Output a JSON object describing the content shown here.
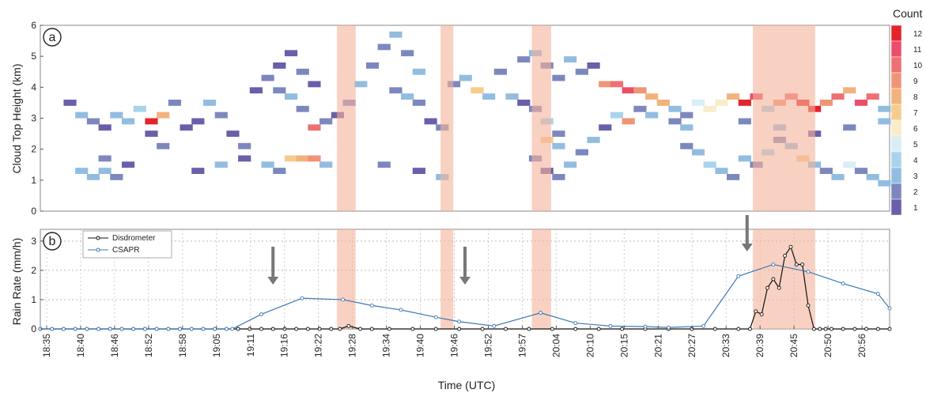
{
  "chart_data": [
    {
      "panel": "a",
      "type": "heatmap",
      "ylabel": "Cloud Top Height (km)",
      "ylim": [
        0,
        6
      ],
      "yticks": [
        0,
        1,
        2,
        3,
        4,
        5,
        6
      ],
      "colorbar_title": "Count",
      "colorbar_labels": [
        "1",
        "2",
        "3",
        "4",
        "5",
        "6",
        "7",
        "8",
        "9",
        "10",
        "11",
        "12"
      ],
      "colors": {
        "1": "#6a5fa9",
        "2": "#7c88bd",
        "3": "#92bde0",
        "4": "#a9d3ed",
        "5": "#d9eef6",
        "6": "#f8ecca",
        "7": "#f6cc8e",
        "8": "#f2b27c",
        "9": "#ef9575",
        "10": "#ee7074",
        "11": "#ea4e6a",
        "12": "#e3242b"
      },
      "time_range_min": [
        0,
        146
      ],
      "cell_minutes": 2.2,
      "cell_km": 0.2,
      "cells": [
        [
          4,
          3.4,
          1
        ],
        [
          6,
          3.0,
          3
        ],
        [
          8,
          2.8,
          2
        ],
        [
          10,
          2.6,
          1
        ],
        [
          12,
          3.0,
          3
        ],
        [
          14,
          2.8,
          3
        ],
        [
          16,
          3.2,
          4
        ],
        [
          18,
          2.8,
          12
        ],
        [
          20,
          3.0,
          8
        ],
        [
          22,
          3.4,
          2
        ],
        [
          6,
          1.2,
          3
        ],
        [
          8,
          1.0,
          3
        ],
        [
          10,
          1.2,
          3
        ],
        [
          12,
          1.0,
          2
        ],
        [
          14,
          1.4,
          1
        ],
        [
          10,
          1.6,
          2
        ],
        [
          18,
          2.4,
          1
        ],
        [
          20,
          2.0,
          2
        ],
        [
          24,
          2.6,
          1
        ],
        [
          26,
          2.8,
          1
        ],
        [
          28,
          3.4,
          3
        ],
        [
          30,
          3.0,
          2
        ],
        [
          32,
          2.4,
          1
        ],
        [
          34,
          2.0,
          2
        ],
        [
          26,
          1.2,
          1
        ],
        [
          30,
          1.4,
          3
        ],
        [
          34,
          1.6,
          1
        ],
        [
          38,
          1.4,
          3
        ],
        [
          40,
          1.2,
          2
        ],
        [
          42,
          1.6,
          7
        ],
        [
          44,
          1.6,
          8
        ],
        [
          46,
          1.6,
          9
        ],
        [
          48,
          1.4,
          3
        ],
        [
          36,
          3.8,
          1
        ],
        [
          38,
          4.2,
          2
        ],
        [
          40,
          4.6,
          1
        ],
        [
          42,
          5.0,
          1
        ],
        [
          44,
          4.4,
          2
        ],
        [
          46,
          4.0,
          1
        ],
        [
          40,
          3.8,
          2
        ],
        [
          42,
          3.6,
          3
        ],
        [
          44,
          3.2,
          2
        ],
        [
          46,
          2.6,
          10
        ],
        [
          48,
          2.8,
          2
        ],
        [
          50,
          3.0,
          1
        ],
        [
          52,
          3.4,
          2
        ],
        [
          54,
          4.0,
          3
        ],
        [
          56,
          4.6,
          2
        ],
        [
          58,
          5.2,
          2
        ],
        [
          60,
          5.6,
          3
        ],
        [
          62,
          5.0,
          2
        ],
        [
          64,
          4.4,
          3
        ],
        [
          60,
          3.8,
          2
        ],
        [
          62,
          3.6,
          3
        ],
        [
          64,
          3.4,
          2
        ],
        [
          66,
          2.8,
          1
        ],
        [
          68,
          2.6,
          2
        ],
        [
          58,
          1.4,
          2
        ],
        [
          64,
          1.2,
          1
        ],
        [
          68,
          1.0,
          3
        ],
        [
          70,
          4.0,
          2
        ],
        [
          72,
          4.2,
          3
        ],
        [
          74,
          3.8,
          7
        ],
        [
          76,
          3.6,
          3
        ],
        [
          78,
          4.4,
          2
        ],
        [
          80,
          3.6,
          3
        ],
        [
          82,
          3.4,
          1
        ],
        [
          84,
          3.2,
          2
        ],
        [
          86,
          2.8,
          4
        ],
        [
          88,
          2.4,
          2
        ],
        [
          82,
          4.8,
          2
        ],
        [
          84,
          5.0,
          3
        ],
        [
          86,
          4.6,
          2
        ],
        [
          88,
          4.2,
          2
        ],
        [
          90,
          4.8,
          3
        ],
        [
          92,
          4.4,
          2
        ],
        [
          94,
          4.6,
          1
        ],
        [
          96,
          4.0,
          9
        ],
        [
          98,
          4.0,
          10
        ],
        [
          100,
          3.8,
          11
        ],
        [
          102,
          3.8,
          9
        ],
        [
          104,
          3.6,
          8
        ],
        [
          86,
          2.2,
          7
        ],
        [
          88,
          2.0,
          3
        ],
        [
          84,
          1.6,
          2
        ],
        [
          86,
          1.2,
          1
        ],
        [
          88,
          1.0,
          2
        ],
        [
          90,
          1.4,
          3
        ],
        [
          92,
          1.8,
          2
        ],
        [
          94,
          2.2,
          3
        ],
        [
          96,
          2.6,
          1
        ],
        [
          98,
          3.0,
          4
        ],
        [
          100,
          2.8,
          9
        ],
        [
          102,
          3.2,
          2
        ],
        [
          104,
          3.0,
          3
        ],
        [
          106,
          3.4,
          8
        ],
        [
          108,
          3.2,
          3
        ],
        [
          110,
          3.0,
          2
        ],
        [
          112,
          3.4,
          5
        ],
        [
          114,
          3.2,
          6
        ],
        [
          116,
          3.4,
          6
        ],
        [
          118,
          3.6,
          8
        ],
        [
          120,
          3.4,
          12
        ],
        [
          122,
          3.6,
          11
        ],
        [
          124,
          3.2,
          4
        ],
        [
          126,
          3.4,
          9
        ],
        [
          128,
          3.6,
          10
        ],
        [
          130,
          3.4,
          12
        ],
        [
          132,
          3.2,
          12
        ],
        [
          134,
          3.4,
          9
        ],
        [
          136,
          3.6,
          10
        ],
        [
          138,
          3.8,
          8
        ],
        [
          140,
          3.4,
          11
        ],
        [
          142,
          3.6,
          10
        ],
        [
          144,
          3.2,
          3
        ],
        [
          110,
          2.0,
          2
        ],
        [
          112,
          1.8,
          3
        ],
        [
          114,
          1.4,
          4
        ],
        [
          116,
          1.2,
          3
        ],
        [
          118,
          1.0,
          2
        ],
        [
          120,
          1.6,
          3
        ],
        [
          122,
          1.4,
          2
        ],
        [
          124,
          1.8,
          4
        ],
        [
          126,
          2.2,
          2
        ],
        [
          128,
          2.0,
          3
        ],
        [
          130,
          1.6,
          7
        ],
        [
          132,
          1.4,
          3
        ],
        [
          134,
          1.2,
          2
        ],
        [
          136,
          1.0,
          3
        ],
        [
          138,
          1.4,
          5
        ],
        [
          140,
          1.2,
          2
        ],
        [
          142,
          1.0,
          3
        ],
        [
          144,
          0.8,
          3
        ],
        [
          108,
          2.8,
          2
        ],
        [
          110,
          2.6,
          3
        ],
        [
          120,
          2.8,
          2
        ],
        [
          126,
          2.6,
          3
        ],
        [
          132,
          2.4,
          1
        ],
        [
          138,
          2.6,
          2
        ],
        [
          144,
          2.8,
          3
        ]
      ],
      "shaded_intervals_min": [
        [
          51,
          54.2
        ],
        [
          68.8,
          71
        ],
        [
          84.5,
          87.8
        ],
        [
          122.5,
          133.2
        ]
      ]
    },
    {
      "panel": "b",
      "type": "line",
      "xlabel": "Time (UTC)",
      "ylabel": "Rain Rate (mm/h)",
      "ylim": [
        0,
        3.4
      ],
      "yticks": [
        0,
        1,
        2,
        3
      ],
      "xticks": [
        "18:35",
        "18:40",
        "18:46",
        "18:52",
        "18:58",
        "19:05",
        "19:11",
        "19:16",
        "19:22",
        "19:28",
        "19:34",
        "19:40",
        "19:46",
        "19:52",
        "19:57",
        "20:04",
        "20:10",
        "20:15",
        "20:21",
        "20:27",
        "20:33",
        "20:39",
        "20:45",
        "20:50",
        "20:56"
      ],
      "x_range_min": [
        0,
        146
      ],
      "series": [
        {
          "name": "Disdrometer",
          "color": "#111111",
          "x": [
            0,
            2,
            4,
            6,
            8,
            10,
            12,
            14,
            16,
            18,
            20,
            22,
            24,
            26,
            28,
            30,
            32,
            34,
            36,
            38,
            40,
            42,
            44,
            46,
            48,
            50,
            51.5,
            53,
            55,
            57,
            60,
            64,
            68,
            72,
            76,
            80,
            84,
            88,
            92,
            96,
            100,
            104,
            108,
            112,
            116,
            120,
            122,
            123,
            124,
            125,
            126,
            127,
            128,
            129,
            130,
            131,
            132,
            133,
            134,
            135,
            136,
            138,
            140,
            142,
            144,
            146
          ],
          "y": [
            0,
            0,
            0,
            0,
            0,
            0,
            0,
            0,
            0,
            0,
            0,
            0,
            0,
            0,
            0,
            0,
            0,
            0,
            0,
            0,
            0,
            0,
            0,
            0,
            0,
            0,
            0,
            0.1,
            0,
            0,
            0,
            0,
            0,
            0,
            0,
            0,
            0,
            0,
            0,
            0,
            0,
            0,
            0,
            0,
            0,
            0,
            0,
            0.6,
            0.5,
            1.4,
            1.7,
            1.4,
            2.5,
            2.8,
            2.2,
            2.2,
            0.8,
            0,
            0,
            0,
            0,
            0,
            0,
            0,
            0,
            0
          ]
        },
        {
          "name": "CSAPR",
          "color": "#3a78b6",
          "x": [
            0,
            2,
            4,
            6,
            8,
            10,
            12,
            14,
            16,
            18,
            20,
            22,
            24,
            26,
            28,
            30,
            32,
            33,
            38,
            45,
            52,
            57,
            62,
            68,
            72,
            78,
            86,
            92,
            98,
            104,
            108,
            114,
            120,
            126,
            132,
            138,
            144,
            146
          ],
          "y": [
            0,
            0,
            0,
            0,
            0,
            0,
            0,
            0,
            0,
            0,
            0,
            0,
            0,
            0,
            0,
            0,
            0,
            0,
            0.5,
            1.05,
            1.0,
            0.8,
            0.65,
            0.4,
            0.25,
            0.1,
            0.55,
            0.2,
            0.1,
            0.08,
            0.05,
            0.1,
            1.8,
            2.2,
            1.95,
            1.55,
            1.2,
            0.7
          ]
        }
      ],
      "shaded_intervals_min": [
        [
          51,
          54.2
        ],
        [
          68.8,
          71
        ],
        [
          84.5,
          87.8
        ],
        [
          122.5,
          133.2
        ]
      ],
      "arrows_at_min": [
        40,
        73,
        121.5
      ]
    }
  ]
}
